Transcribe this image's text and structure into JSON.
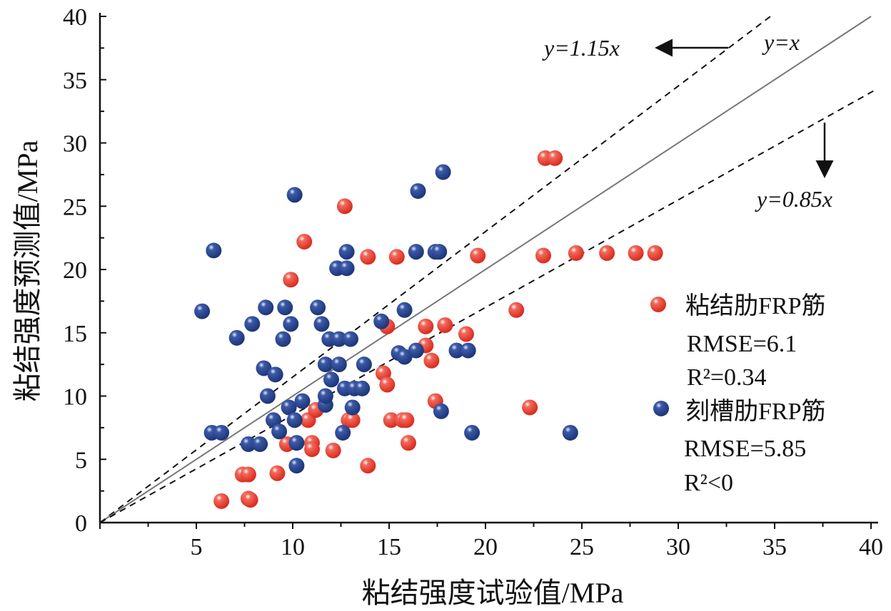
{
  "chart_data": {
    "type": "scatter",
    "xlabel": "粘结强度试验值/MPa",
    "ylabel": "粘结强度预测值/MPa",
    "xlim": [
      0,
      40
    ],
    "ylim": [
      0,
      40
    ],
    "xticks": [
      5,
      10,
      15,
      20,
      25,
      30,
      35,
      40
    ],
    "yticks": [
      0,
      5,
      10,
      15,
      20,
      25,
      30,
      35,
      40
    ],
    "grid": false,
    "legend_position": "right",
    "reference_lines": [
      {
        "label": "y=1.15x",
        "slope": 1.15,
        "style": "dashed"
      },
      {
        "label": "y=x",
        "slope": 1.0,
        "style": "solid"
      },
      {
        "label": "y=0.85x",
        "slope": 0.85,
        "style": "dashed"
      }
    ],
    "series": [
      {
        "name": "粘结肋FRP筋",
        "stats": [
          "RMSE=6.1",
          "R²=0.34"
        ],
        "color": "#e8362a",
        "points": [
          [
            6.3,
            1.7
          ],
          [
            7.7,
            1.9
          ],
          [
            7.8,
            1.8
          ],
          [
            7.4,
            3.8
          ],
          [
            7.7,
            3.8
          ],
          [
            9.2,
            3.9
          ],
          [
            9.7,
            6.2
          ],
          [
            9.9,
            19.2
          ],
          [
            10.6,
            22.2
          ],
          [
            10.8,
            8.1
          ],
          [
            11.0,
            6.3
          ],
          [
            11.0,
            5.8
          ],
          [
            11.2,
            8.9
          ],
          [
            12.1,
            5.7
          ],
          [
            12.7,
            25.0
          ],
          [
            12.9,
            8.1
          ],
          [
            13.1,
            8.1
          ],
          [
            13.9,
            4.5
          ],
          [
            13.9,
            21.0
          ],
          [
            14.7,
            11.8
          ],
          [
            14.9,
            10.9
          ],
          [
            14.9,
            15.5
          ],
          [
            15.4,
            21.0
          ],
          [
            15.1,
            8.1
          ],
          [
            15.7,
            8.1
          ],
          [
            15.9,
            8.1
          ],
          [
            16.0,
            6.3
          ],
          [
            16.9,
            14.0
          ],
          [
            16.9,
            15.5
          ],
          [
            17.2,
            12.8
          ],
          [
            17.4,
            9.6
          ],
          [
            17.9,
            15.6
          ],
          [
            19.0,
            14.9
          ],
          [
            19.6,
            21.1
          ],
          [
            21.6,
            16.8
          ],
          [
            22.3,
            9.1
          ],
          [
            23.1,
            28.8
          ],
          [
            23.6,
            28.8
          ],
          [
            23.0,
            21.1
          ],
          [
            24.7,
            21.3
          ],
          [
            26.3,
            21.3
          ],
          [
            27.8,
            21.3
          ],
          [
            28.8,
            21.3
          ]
        ]
      },
      {
        "name": "刻槽肋FRP筋",
        "stats": [
          "RMSE=5.85",
          "R²<0"
        ],
        "color": "#24418f",
        "points": [
          [
            5.3,
            16.7
          ],
          [
            5.9,
            21.5
          ],
          [
            5.8,
            7.1
          ],
          [
            6.3,
            7.1
          ],
          [
            7.1,
            14.6
          ],
          [
            7.7,
            6.2
          ],
          [
            8.3,
            6.2
          ],
          [
            7.9,
            15.7
          ],
          [
            8.6,
            17.0
          ],
          [
            8.5,
            12.2
          ],
          [
            8.7,
            10.0
          ],
          [
            9.0,
            8.1
          ],
          [
            9.1,
            11.7
          ],
          [
            9.3,
            7.2
          ],
          [
            9.5,
            14.5
          ],
          [
            9.6,
            17.0
          ],
          [
            9.8,
            9.1
          ],
          [
            9.9,
            15.7
          ],
          [
            10.1,
            25.9
          ],
          [
            10.1,
            8.1
          ],
          [
            10.2,
            6.3
          ],
          [
            10.5,
            9.6
          ],
          [
            10.2,
            4.5
          ],
          [
            11.3,
            17.0
          ],
          [
            11.5,
            15.7
          ],
          [
            11.7,
            12.5
          ],
          [
            11.7,
            9.3
          ],
          [
            11.7,
            10.0
          ],
          [
            12.0,
            11.3
          ],
          [
            11.9,
            14.5
          ],
          [
            12.4,
            14.5
          ],
          [
            13.0,
            14.5
          ],
          [
            12.3,
            20.1
          ],
          [
            12.8,
            20.1
          ],
          [
            12.8,
            21.4
          ],
          [
            12.4,
            12.5
          ],
          [
            12.6,
            7.1
          ],
          [
            12.7,
            10.6
          ],
          [
            13.2,
            10.6
          ],
          [
            13.1,
            9.1
          ],
          [
            13.6,
            10.6
          ],
          [
            13.7,
            12.5
          ],
          [
            14.6,
            15.9
          ],
          [
            15.5,
            13.4
          ],
          [
            15.8,
            13.1
          ],
          [
            15.8,
            16.8
          ],
          [
            16.4,
            13.6
          ],
          [
            16.5,
            26.2
          ],
          [
            16.4,
            21.4
          ],
          [
            17.4,
            21.4
          ],
          [
            17.6,
            21.4
          ],
          [
            17.7,
            8.8
          ],
          [
            17.8,
            27.7
          ],
          [
            18.5,
            13.6
          ],
          [
            19.1,
            13.6
          ],
          [
            19.3,
            7.1
          ],
          [
            24.4,
            7.1
          ]
        ]
      }
    ]
  }
}
